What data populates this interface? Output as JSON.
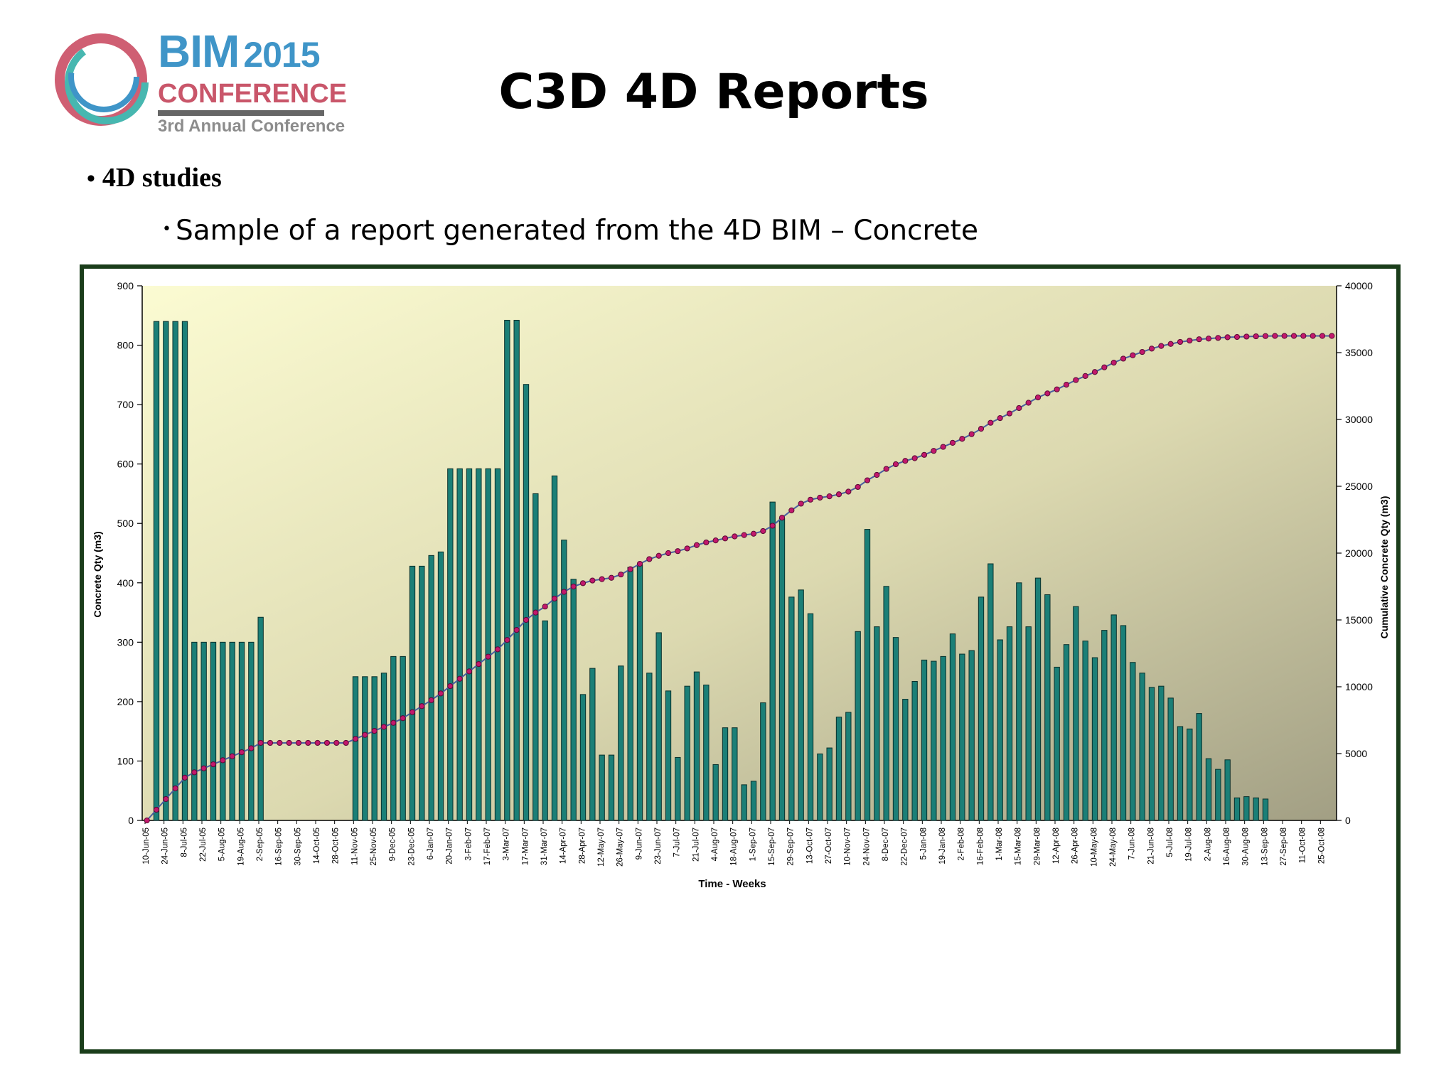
{
  "logo": {
    "brand": "BIM",
    "year": "2015",
    "conference": "CONFERENCE",
    "tagline": "3rd Annual Conference"
  },
  "slide": {
    "title": "C3D 4D Reports",
    "bullet1": "4D studies",
    "bullet2": "Sample of a report generated from the 4D BIM – Concrete"
  },
  "colors": {
    "bar": "#1b7f77",
    "line": "#4a5fa0",
    "marker": "#c2186c",
    "frame": "#1a3d1a"
  },
  "chart_data": {
    "type": "bar",
    "xlabel": "Time - Weeks",
    "ylabel": "Concrete  Qty (m3)",
    "y2label": "Cumulative Concrete Qty (m3)",
    "ylim": [
      0,
      900
    ],
    "y2lim": [
      0,
      40000
    ],
    "yticks": [
      0,
      100,
      200,
      300,
      400,
      500,
      600,
      700,
      800,
      900
    ],
    "y2ticks": [
      0,
      5000,
      10000,
      15000,
      20000,
      25000,
      30000,
      35000,
      40000
    ],
    "xtick_labels": [
      "10-Jun-05",
      "24-Jun-05",
      "8-Jul-05",
      "22-Jul-05",
      "5-Aug-05",
      "19-Aug-05",
      "2-Sep-05",
      "16-Sep-05",
      "30-Sep-05",
      "14-Oct-05",
      "28-Oct-05",
      "11-Nov-05",
      "25-Nov-05",
      "9-Dec-05",
      "23-Dec-05",
      "6-Jan-07",
      "20-Jan-07",
      "3-Feb-07",
      "17-Feb-07",
      "3-Mar-07",
      "17-Mar-07",
      "31-Mar-07",
      "14-Apr-07",
      "28-Apr-07",
      "12-May-07",
      "26-May-07",
      "9-Jun-07",
      "23-Jun-07",
      "7-Jul-07",
      "21-Jul-07",
      "4-Aug-07",
      "18-Aug-07",
      "1-Sep-07",
      "15-Sep-07",
      "29-Sep-07",
      "13-Oct-07",
      "27-Oct-07",
      "10-Nov-07",
      "24-Nov-07",
      "8-Dec-07",
      "22-Dec-07",
      "5-Jan-08",
      "19-Jan-08",
      "2-Feb-08",
      "16-Feb-08",
      "1-Mar-08",
      "15-Mar-08",
      "29-Mar-08",
      "12-Apr-08",
      "26-Apr-08",
      "10-May-08",
      "24-May-08",
      "7-Jun-08",
      "21-Jun-08",
      "5-Jul-08",
      "19-Jul-08",
      "2-Aug-08",
      "16-Aug-08",
      "30-Aug-08",
      "13-Sep-08",
      "27-Sep-08",
      "11-Oct-08",
      "25-Oct-08"
    ],
    "series": [
      {
        "type": "bar",
        "axis": "left",
        "values": [
          0,
          840,
          840,
          840,
          840,
          300,
          300,
          300,
          300,
          300,
          300,
          300,
          342,
          0,
          0,
          0,
          0,
          0,
          0,
          0,
          0,
          0,
          242,
          242,
          242,
          248,
          276,
          276,
          428,
          428,
          446,
          452,
          592,
          592,
          592,
          592,
          592,
          592,
          842,
          842,
          734,
          550,
          336,
          580,
          472,
          406,
          212,
          256,
          110,
          110,
          260,
          426,
          430,
          248,
          316,
          218,
          106,
          226,
          250,
          228,
          94,
          156,
          156,
          60,
          66,
          198,
          536,
          508,
          376,
          388,
          348,
          112,
          122,
          174,
          182,
          318,
          490,
          326,
          394,
          308,
          204,
          234,
          270,
          268,
          276,
          314,
          280,
          286,
          376,
          432,
          304,
          326,
          400,
          326,
          408,
          380,
          258,
          296,
          360,
          302,
          274,
          320,
          346,
          328,
          266,
          248,
          224,
          226,
          206,
          158,
          154,
          180,
          104,
          86,
          102,
          38,
          40,
          38,
          36,
          0,
          0,
          0,
          0,
          0,
          0,
          0
        ]
      },
      {
        "type": "line",
        "axis": "right",
        "values": [
          0,
          800,
          1600,
          2400,
          3200,
          3600,
          3900,
          4200,
          4500,
          4800,
          5100,
          5400,
          5800,
          5800,
          5800,
          5800,
          5800,
          5800,
          5800,
          5800,
          5800,
          5800,
          6100,
          6400,
          6700,
          7000,
          7300,
          7650,
          8100,
          8550,
          9000,
          9500,
          10050,
          10600,
          11150,
          11700,
          12250,
          12800,
          13500,
          14250,
          15000,
          15550,
          16000,
          16600,
          17100,
          17500,
          17750,
          17950,
          18050,
          18150,
          18400,
          18800,
          19200,
          19550,
          19800,
          20000,
          20150,
          20350,
          20600,
          20800,
          20950,
          21100,
          21250,
          21350,
          21450,
          21650,
          22050,
          22650,
          23200,
          23700,
          24000,
          24150,
          24250,
          24400,
          24600,
          24950,
          25450,
          25850,
          26300,
          26650,
          26900,
          27100,
          27350,
          27650,
          27950,
          28250,
          28550,
          28900,
          29300,
          29750,
          30100,
          30450,
          30850,
          31250,
          31650,
          31950,
          32250,
          32600,
          32950,
          33250,
          33550,
          33900,
          34250,
          34550,
          34800,
          35050,
          35300,
          35500,
          35650,
          35800,
          35900,
          36000,
          36050,
          36100,
          36150,
          36170,
          36200,
          36220,
          36240,
          36250,
          36250,
          36250,
          36250,
          36250,
          36250,
          36250
        ]
      }
    ]
  }
}
